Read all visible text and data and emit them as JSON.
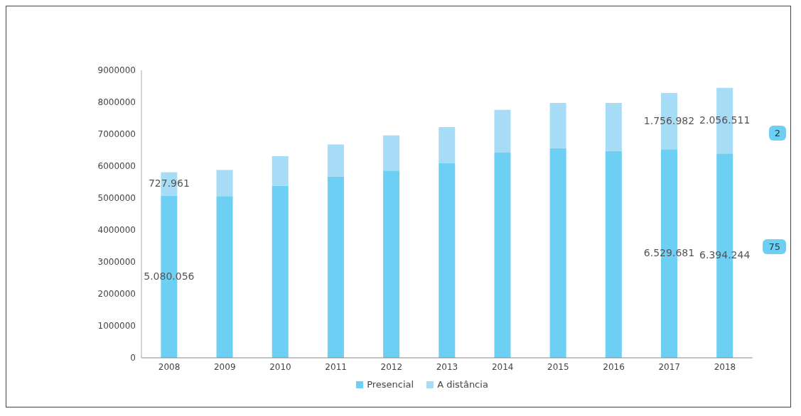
{
  "chart_data": {
    "type": "bar",
    "stacked": true,
    "categories": [
      "2008",
      "2009",
      "2010",
      "2011",
      "2012",
      "2013",
      "2014",
      "2015",
      "2016",
      "2017",
      "2018"
    ],
    "series": [
      {
        "name": "Presencial",
        "color": "#6ccff3",
        "values": [
          5080056,
          5060000,
          5390000,
          5670000,
          5860000,
          6090000,
          6420000,
          6560000,
          6470000,
          6529681,
          6394244
        ],
        "value_labels": [
          "5.080.056",
          null,
          null,
          null,
          null,
          null,
          null,
          null,
          null,
          "6.529.681",
          "6.394.244"
        ]
      },
      {
        "name": "A distância",
        "color": "#a6dcf5",
        "values": [
          727961,
          820000,
          920000,
          1010000,
          1100000,
          1130000,
          1340000,
          1420000,
          1510000,
          1756982,
          2056511
        ],
        "value_labels": [
          "727.961",
          null,
          null,
          null,
          null,
          null,
          null,
          null,
          null,
          "1.756.982",
          "2.056.511"
        ]
      }
    ],
    "ylim": [
      0,
      9000000
    ],
    "yticks": [
      0,
      1000000,
      2000000,
      3000000,
      4000000,
      5000000,
      6000000,
      7000000,
      8000000,
      9000000
    ],
    "legend": "bottom",
    "annotations": [
      "2",
      "75"
    ]
  }
}
